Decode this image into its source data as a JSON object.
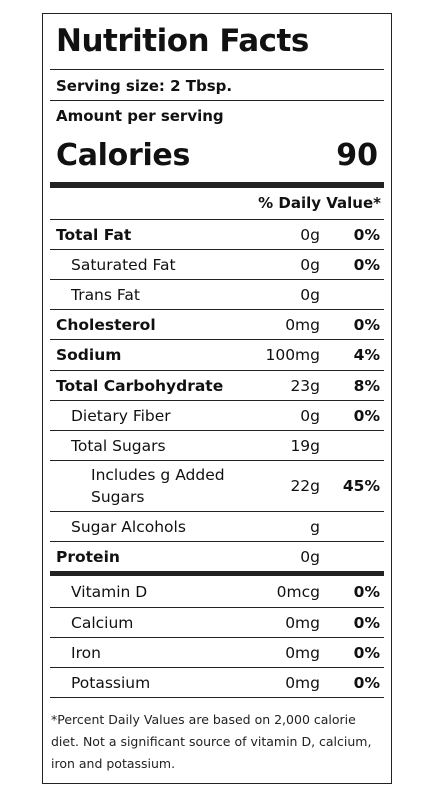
{
  "label": {
    "title": "Nutrition Facts",
    "serving_size": "Serving size: 2 Tbsp.",
    "amount_per_serving": "Amount per serving",
    "calories_label": "Calories",
    "calories_value": "90",
    "daily_value_header": "% Daily Value*",
    "nutrients": [
      {
        "name": "Total Fat",
        "amount": "0g",
        "dv": "0%"
      },
      {
        "name": "Saturated Fat",
        "amount": "0g",
        "dv": "0%"
      },
      {
        "name": "Trans Fat",
        "amount": "0g",
        "dv": ""
      },
      {
        "name": "Cholesterol",
        "amount": "0mg",
        "dv": "0%"
      },
      {
        "name": "Sodium",
        "amount": "100mg",
        "dv": "4%"
      },
      {
        "name": "Total Carbohydrate",
        "amount": "23g",
        "dv": "8%"
      },
      {
        "name": "Dietary Fiber",
        "amount": "0g",
        "dv": "0%"
      },
      {
        "name": "Total Sugars",
        "amount": "19g",
        "dv": ""
      },
      {
        "name": "Includes g Added Sugars",
        "amount": "22g",
        "dv": "45%"
      },
      {
        "name": "Sugar Alcohols",
        "amount": "g",
        "dv": ""
      },
      {
        "name": "Protein",
        "amount": "0g",
        "dv": ""
      }
    ],
    "vitamins": [
      {
        "name": "Vitamin D",
        "amount": "0mcg",
        "dv": "0%"
      },
      {
        "name": "Calcium",
        "amount": "0mg",
        "dv": "0%"
      },
      {
        "name": "Iron",
        "amount": "0mg",
        "dv": "0%"
      },
      {
        "name": "Potassium",
        "amount": "0mg",
        "dv": "0%"
      }
    ],
    "footnote": "*Percent Daily Values are based on 2,000 calorie diet. Not a significant source of vitamin D, calcium, iron and potassium."
  }
}
